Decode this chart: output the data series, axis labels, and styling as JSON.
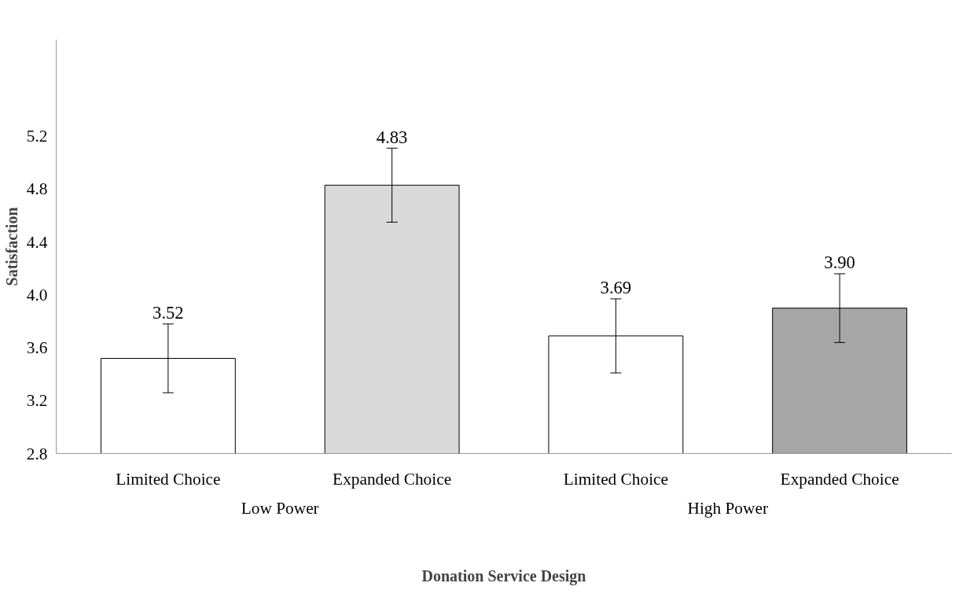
{
  "chart_data": {
    "type": "bar",
    "categories": [
      "Limited Choice",
      "Expanded Choice",
      "Limited Choice",
      "Expanded Choice"
    ],
    "values": [
      3.52,
      4.83,
      3.69,
      3.9
    ],
    "errors": [
      0.26,
      0.28,
      0.28,
      0.26
    ],
    "value_labels": [
      "3.52",
      "4.83",
      "3.69",
      "3.90"
    ],
    "colors": [
      "#ffffff",
      "#d9d9d9",
      "#ffffff",
      "#a6a6a6"
    ],
    "ylim": [
      2.8,
      5.93
    ],
    "yticks": [
      {
        "value": 2.8,
        "label": "2.8"
      },
      {
        "value": 3.2,
        "label": "3.2"
      },
      {
        "value": 3.6,
        "label": "3.6"
      },
      {
        "value": 4.0,
        "label": "4.0"
      },
      {
        "value": 4.4,
        "label": "4.4"
      },
      {
        "value": 4.8,
        "label": "4.8"
      },
      {
        "value": 5.2,
        "label": "5.2"
      }
    ],
    "ylabel": "Satisfaction",
    "xlabel": "Donation Service Design",
    "annotations": [
      "Low Power",
      "High Power"
    ],
    "grid": false
  }
}
